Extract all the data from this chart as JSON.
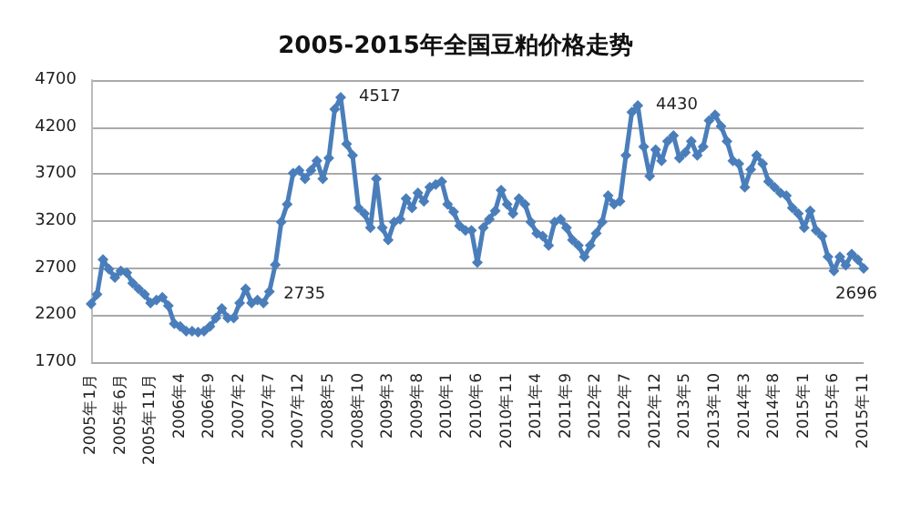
{
  "chart_data": {
    "type": "line",
    "title": "2005-2015年全国豆粕价格走势",
    "categories": [
      "2005年1月",
      null,
      null,
      null,
      null,
      "2005年6月",
      null,
      null,
      null,
      null,
      "2005年11月",
      null,
      null,
      null,
      null,
      "2006年4",
      null,
      null,
      null,
      null,
      "2006年9",
      null,
      null,
      null,
      null,
      "2007年2",
      null,
      null,
      null,
      null,
      "2007年7",
      null,
      null,
      null,
      null,
      "2007年12",
      null,
      null,
      null,
      null,
      "2008年5",
      null,
      null,
      null,
      null,
      "2008年10",
      null,
      null,
      null,
      null,
      "2009年3",
      null,
      null,
      null,
      null,
      "2009年8",
      null,
      null,
      null,
      null,
      "2010年1",
      null,
      null,
      null,
      null,
      "2010年6",
      null,
      null,
      null,
      null,
      "2010年11",
      null,
      null,
      null,
      null,
      "2011年4",
      null,
      null,
      null,
      null,
      "2011年9",
      null,
      null,
      null,
      null,
      "2012年2",
      null,
      null,
      null,
      null,
      "2012年7",
      null,
      null,
      null,
      null,
      "2012年12",
      null,
      null,
      null,
      null,
      "2013年5",
      null,
      null,
      null,
      null,
      "2013年10",
      null,
      null,
      null,
      null,
      "2014年3",
      null,
      null,
      null,
      null,
      "2014年8",
      null,
      null,
      null,
      null,
      "2015年1",
      null,
      null,
      null,
      null,
      "2015年6",
      null,
      null,
      null,
      null,
      "2015年11"
    ],
    "series": [
      {
        "color": "#4a7ebb",
        "values": [
          2320,
          2420,
          2790,
          2690,
          2600,
          2670,
          2650,
          2540,
          2480,
          2420,
          2330,
          2360,
          2390,
          2300,
          2110,
          2080,
          2030,
          2030,
          2020,
          2030,
          2080,
          2170,
          2270,
          2170,
          2170,
          2330,
          2480,
          2330,
          2360,
          2330,
          2450,
          2735,
          3190,
          3380,
          3710,
          3740,
          3650,
          3740,
          3840,
          3650,
          3870,
          4390,
          4517,
          4020,
          3900,
          3340,
          3280,
          3130,
          3650,
          3130,
          3000,
          3190,
          3220,
          3440,
          3340,
          3500,
          3410,
          3560,
          3590,
          3620,
          3380,
          3300,
          3150,
          3100,
          3100,
          2760,
          3130,
          3220,
          3310,
          3530,
          3380,
          3280,
          3440,
          3380,
          3190,
          3070,
          3040,
          2940,
          3190,
          3220,
          3130,
          3000,
          2940,
          2820,
          2940,
          3070,
          3190,
          3470,
          3380,
          3410,
          3900,
          4360,
          4430,
          3990,
          3680,
          3960,
          3840,
          4050,
          4110,
          3870,
          3930,
          4050,
          3900,
          3990,
          4270,
          4330,
          4210,
          4050,
          3840,
          3810,
          3560,
          3750,
          3900,
          3810,
          3620,
          3560,
          3500,
          3470,
          3340,
          3280,
          3130,
          3310,
          3100,
          3040,
          2820,
          2670,
          2820,
          2730,
          2850,
          2790,
          2696
        ],
        "value_labels": [
          null,
          null,
          null,
          null,
          null,
          null,
          null,
          null,
          null,
          null,
          null,
          null,
          null,
          null,
          null,
          null,
          null,
          null,
          null,
          null,
          null,
          null,
          null,
          null,
          null,
          null,
          null,
          null,
          null,
          null,
          null,
          "2735",
          null,
          null,
          null,
          null,
          null,
          null,
          null,
          null,
          null,
          null,
          "4517",
          null,
          null,
          null,
          null,
          null,
          null,
          null,
          null,
          null,
          null,
          null,
          null,
          null,
          null,
          null,
          null,
          null,
          null,
          null,
          null,
          null,
          null,
          null,
          null,
          null,
          null,
          null,
          null,
          null,
          null,
          null,
          null,
          null,
          null,
          null,
          null,
          null,
          null,
          null,
          null,
          null,
          null,
          null,
          null,
          null,
          null,
          null,
          null,
          null,
          "4430",
          null,
          null,
          null,
          null,
          null,
          null,
          null,
          null,
          null,
          null,
          null,
          null,
          null,
          null,
          null,
          null,
          null,
          null,
          null,
          null,
          null,
          null,
          null,
          null,
          null,
          null,
          null,
          null,
          null,
          null,
          null,
          null,
          null,
          null,
          null,
          null,
          null,
          "2696"
        ]
      }
    ],
    "ylim": [
      1700,
      4700
    ],
    "yticks": [
      1700,
      2200,
      2700,
      3200,
      3700,
      4200,
      4700
    ],
    "grid": "y",
    "marker": "diamond",
    "line_style": "solid"
  }
}
